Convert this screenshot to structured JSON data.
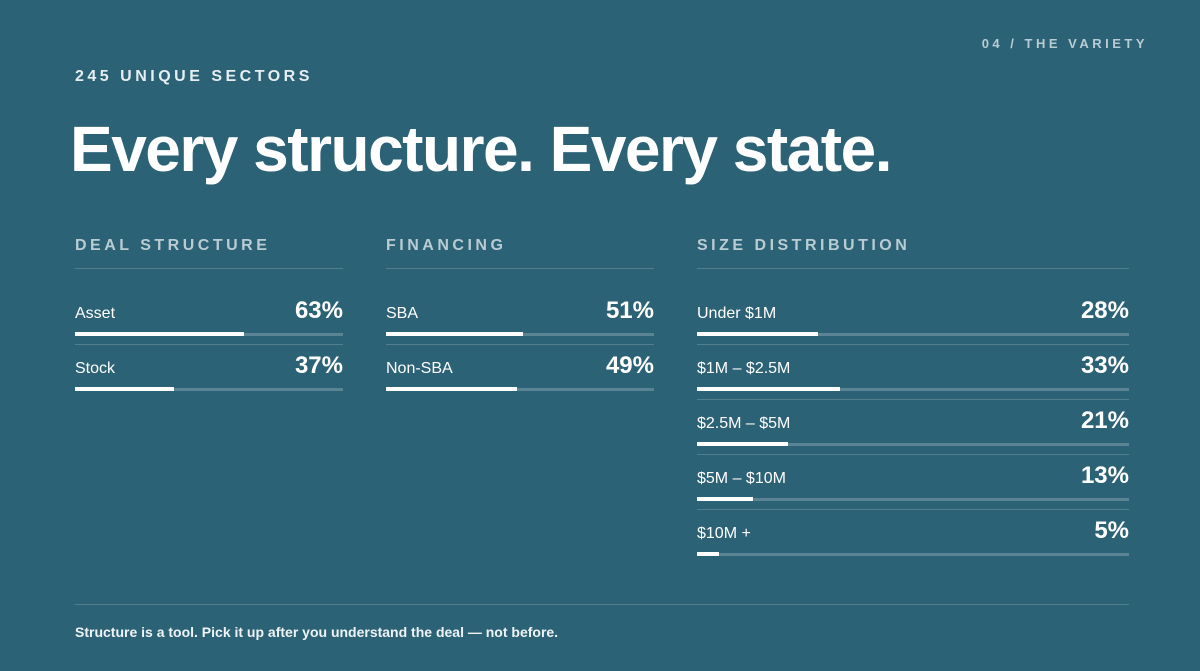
{
  "header": {
    "eyebrow": "245 UNIQUE SECTORS",
    "page_label": "04 / THE VARIETY",
    "title": "Every structure. Every state."
  },
  "groups": [
    {
      "title": "DEAL STRUCTURE",
      "categories": [
        "Asset",
        "Stock"
      ],
      "values": [
        63,
        37
      ],
      "value_labels": [
        "63%",
        "37%"
      ],
      "xlim": [
        0,
        100
      ]
    },
    {
      "title": "FINANCING",
      "categories": [
        "SBA",
        "Non-SBA"
      ],
      "values": [
        51,
        49
      ],
      "value_labels": [
        "51%",
        "49%"
      ],
      "xlim": [
        0,
        100
      ]
    },
    {
      "title": "SIZE DISTRIBUTION",
      "categories": [
        "Under $1M",
        "$1M – $2.5M",
        "$2.5M – $5M",
        "$5M – $10M",
        "$10M +"
      ],
      "values": [
        28,
        33,
        21,
        13,
        5
      ],
      "value_labels": [
        "28%",
        "33%",
        "21%",
        "13%",
        "5%"
      ],
      "xlim": [
        0,
        100
      ]
    }
  ],
  "footer": "Structure is a tool. Pick it up after you understand the deal — not before."
}
